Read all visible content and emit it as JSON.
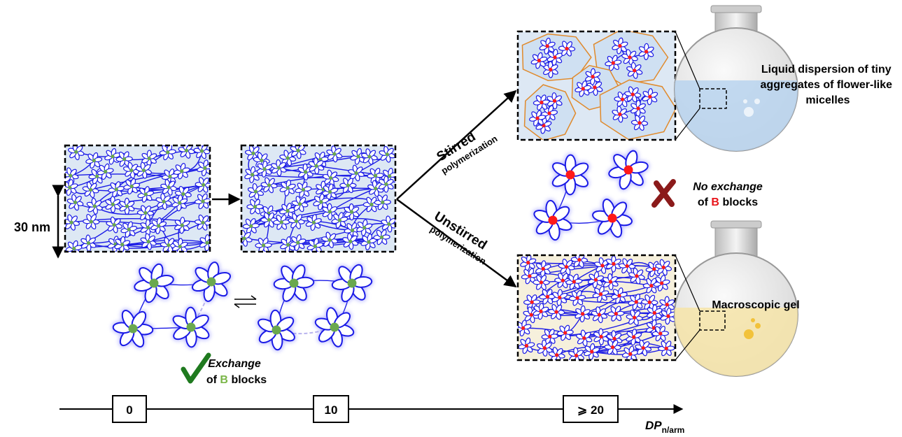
{
  "scale_bar": "30 nm",
  "routes": {
    "stirred": {
      "title": "Stirred",
      "subtitle": "polymerization"
    },
    "unstirred": {
      "title": "Unstirred",
      "subtitle": "polymerization"
    }
  },
  "no_exchange": {
    "title": "No exchange",
    "line2": [
      "of",
      "B",
      "blocks"
    ]
  },
  "exchange": {
    "title": "Exchange",
    "line2": [
      "of",
      "B",
      "blocks"
    ]
  },
  "flasks": {
    "dispersion": [
      "Liquid dispersion of tiny",
      "aggregates of flower-like",
      "micelles"
    ],
    "gel": "Macroscopic gel"
  },
  "axis": {
    "ticks": [
      "0",
      "10",
      "⩾ 20"
    ],
    "label": "DP",
    "label_sub": "n/arm"
  }
}
